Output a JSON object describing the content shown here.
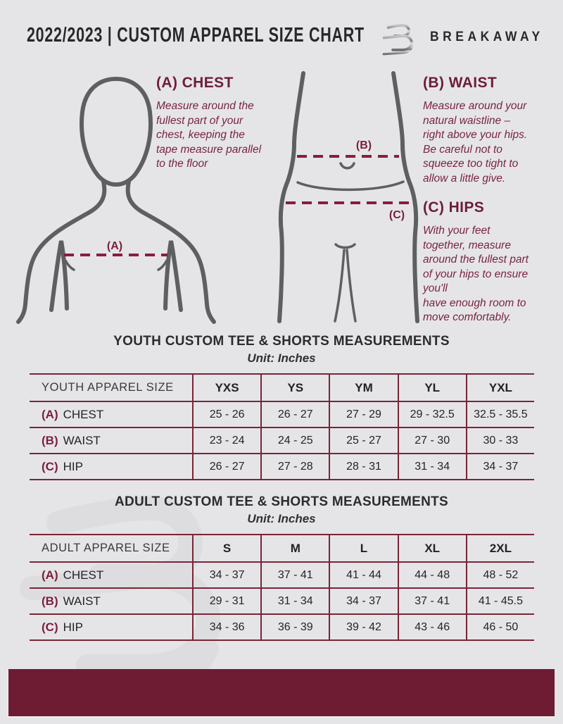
{
  "header": {
    "title": "2022/2023  |  CUSTOM APPAREL SIZE CHART",
    "brand": "BREAKAWAY"
  },
  "colors": {
    "background": "#e5e5e7",
    "maroon_heading": "#6d1d37",
    "maroon_line": "#7a2438",
    "maroon_dash": "#8a1d3b",
    "footer_band": "#6e1c33",
    "figure_gray": "#5e5f61"
  },
  "guides": {
    "chest": {
      "marker": "(A)",
      "heading": "(A) CHEST",
      "body": "Measure around the\nfullest part of your\nchest, keeping the\ntape measure parallel\nto the floor"
    },
    "waist": {
      "marker": "(B)",
      "heading": "(B) WAIST",
      "body": "Measure around your\nnatural waistline –\nright above your hips.\nBe careful not to\nsqueeze too tight to\nallow a little give."
    },
    "hips": {
      "marker": "(C)",
      "heading": "(C) HIPS",
      "body": "With your feet\ntogether, measure\naround the fullest part\nof your hips to ensure\nyou'll\nhave enough room to\nmove comfortably."
    }
  },
  "youth_table": {
    "title": "YOUTH CUSTOM TEE & SHORTS MEASUREMENTS",
    "unit": "Unit: Inches",
    "size_label": "YOUTH APPAREL SIZE",
    "columns": [
      "YXS",
      "YS",
      "YM",
      "YL",
      "YXL"
    ],
    "rows": [
      {
        "key": "(A)",
        "label": "CHEST",
        "values": [
          "25 - 26",
          "26 - 27",
          "27 - 29",
          "29 - 32.5",
          "32.5 - 35.5"
        ]
      },
      {
        "key": "(B)",
        "label": "WAIST",
        "values": [
          "23 - 24",
          "24 - 25",
          "25 - 27",
          "27 - 30",
          "30 - 33"
        ]
      },
      {
        "key": "(C)",
        "label": "HIP",
        "values": [
          "26 - 27",
          "27 - 28",
          "28 - 31",
          "31 - 34",
          "34 - 37"
        ]
      }
    ]
  },
  "adult_table": {
    "title": "ADULT CUSTOM TEE & SHORTS MEASUREMENTS",
    "unit": "Unit: Inches",
    "size_label": "ADULT APPAREL SIZE",
    "columns": [
      "S",
      "M",
      "L",
      "XL",
      "2XL"
    ],
    "rows": [
      {
        "key": "(A)",
        "label": "CHEST",
        "values": [
          "34 - 37",
          "37 - 41",
          "41 - 44",
          "44 - 48",
          "48 - 52"
        ]
      },
      {
        "key": "(B)",
        "label": "WAIST",
        "values": [
          "29 - 31",
          "31 - 34",
          "34 - 37",
          "37 - 41",
          "41 - 45.5"
        ]
      },
      {
        "key": "(C)",
        "label": "HIP",
        "values": [
          "34 - 36",
          "36 - 39",
          "39 - 42",
          "43 - 46",
          "46 - 50"
        ]
      }
    ]
  }
}
